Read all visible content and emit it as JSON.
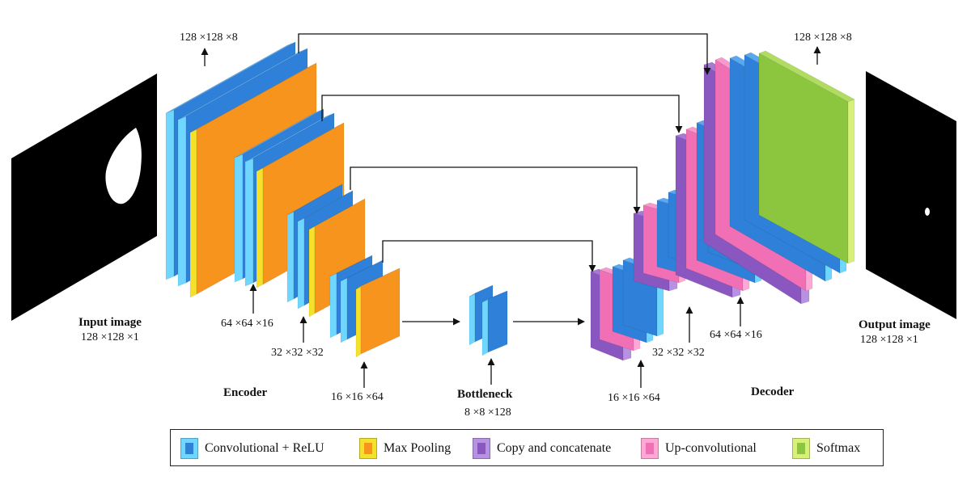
{
  "labels": {
    "input_title": "Input image",
    "input_dims": "128 ×128 ×1",
    "output_title": "Output image",
    "output_dims": "128 ×128 ×1",
    "enc1": "128 ×128 ×8",
    "enc2": "64 ×64 ×16",
    "enc3": "32 ×32 ×32",
    "enc4": "16 ×16 ×64",
    "dec1": "128 ×128 ×8",
    "dec2": "64 ×64 ×16",
    "dec3": "32 ×32 ×32",
    "dec4": "16 ×16 ×64",
    "encoder": "Encoder",
    "decoder": "Decoder",
    "bottleneck": "Bottleneck",
    "bottleneck_dims": "8 ×8 ×128"
  },
  "legend": [
    {
      "label": "Convolutional + ReLU",
      "color": "#2f80d8",
      "edge": "#6fd7ff"
    },
    {
      "label": "Max Pooling",
      "color": "#f7941d",
      "edge": "#f5e12c"
    },
    {
      "label": "Copy and concatenate",
      "color": "#8a57c0",
      "edge": "#b792e3"
    },
    {
      "label": "Up-convolutional",
      "color": "#f06fb5",
      "edge": "#ffa8d6"
    },
    {
      "label": "Softmax",
      "color": "#8cc63f",
      "edge": "#d6f07a"
    }
  ],
  "colors": {
    "conv": "#2f80d8",
    "conv_edge": "#6fd7ff",
    "conv_top": "#5aa8f0",
    "pool": "#f7941d",
    "pool_edge": "#f5e12c",
    "pool_top": "#fbb04d",
    "concat": "#8a57c0",
    "concat_edge": "#b792e3",
    "concat_top": "#a679d6",
    "upconv": "#f06fb5",
    "upconv_edge": "#ffa8d6",
    "upconv_top": "#f79acb",
    "softmax": "#8cc63f",
    "softmax_edge": "#d6f07a",
    "softmax_top": "#b0dc62"
  }
}
